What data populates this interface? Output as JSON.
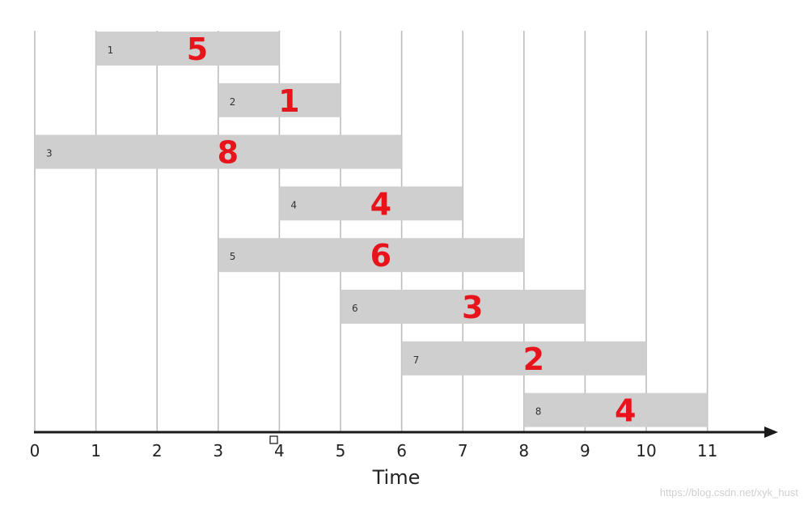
{
  "chart_data": {
    "type": "gantt",
    "xlabel": "Time",
    "x_ticks": [
      "0",
      "1",
      "2",
      "3",
      "4",
      "5",
      "6",
      "7",
      "8",
      "9",
      "10",
      "11"
    ],
    "xlim": [
      0,
      11
    ],
    "grid": true,
    "tasks": [
      {
        "id": "1",
        "start": 1,
        "end": 4,
        "weight": "5"
      },
      {
        "id": "2",
        "start": 3,
        "end": 5,
        "weight": "1"
      },
      {
        "id": "3",
        "start": 0,
        "end": 6,
        "weight": "8"
      },
      {
        "id": "4",
        "start": 4,
        "end": 7,
        "weight": "4"
      },
      {
        "id": "5",
        "start": 3,
        "end": 8,
        "weight": "6"
      },
      {
        "id": "6",
        "start": 5,
        "end": 9,
        "weight": "3"
      },
      {
        "id": "7",
        "start": 6,
        "end": 10,
        "weight": "2"
      },
      {
        "id": "8",
        "start": 8,
        "end": 11,
        "weight": "4"
      }
    ],
    "colors": {
      "bar": "#cfcfcf",
      "grid": "#bdbdbd",
      "axis": "#1a1a1a",
      "weight": "#e8141c"
    }
  },
  "watermark": "https://blog.csdn.net/xyk_hust"
}
